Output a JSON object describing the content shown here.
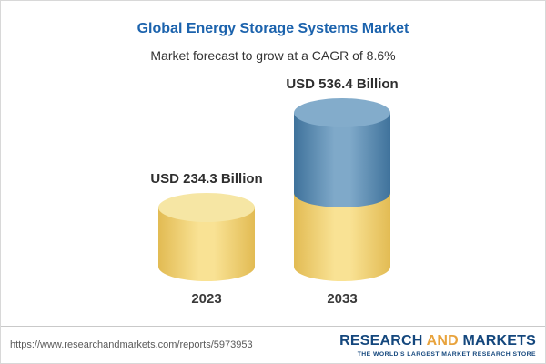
{
  "chart": {
    "title": "Global Energy Storage Systems Market",
    "subtitle": "Market forecast to grow at a CAGR of 8.6%"
  },
  "chart_data": {
    "type": "bar",
    "title": "Global Energy Storage Systems Market",
    "subtitle": "Market forecast to grow at a CAGR of 8.6%",
    "unit": "USD Billion",
    "categories": [
      "2023",
      "2033"
    ],
    "values": [
      234.3,
      536.4
    ],
    "cagr": "8.6%",
    "legend_position": "none",
    "grid": false,
    "bars": [
      {
        "category": "2023",
        "value": 234.3,
        "value_label": "USD 234.3 Billion",
        "segments": [
          {
            "value": 234.3,
            "color": "yellow"
          }
        ]
      },
      {
        "category": "2033",
        "value": 536.4,
        "value_label": "USD 536.4 Billion",
        "segments": [
          {
            "value": 234.3,
            "color": "yellow"
          },
          {
            "value": 302.1,
            "color": "blue"
          }
        ]
      }
    ],
    "colors": {
      "yellow": "#f0d374",
      "blue": "#5b8bb0",
      "title": "#1c63ad"
    }
  },
  "footer": {
    "url": "https://www.researchandmarkets.com/reports/5973953",
    "logo": {
      "part1": "RESEARCH",
      "part2": "AND",
      "part3": "MARKETS",
      "tagline": "THE WORLD'S LARGEST MARKET RESEARCH STORE"
    }
  }
}
